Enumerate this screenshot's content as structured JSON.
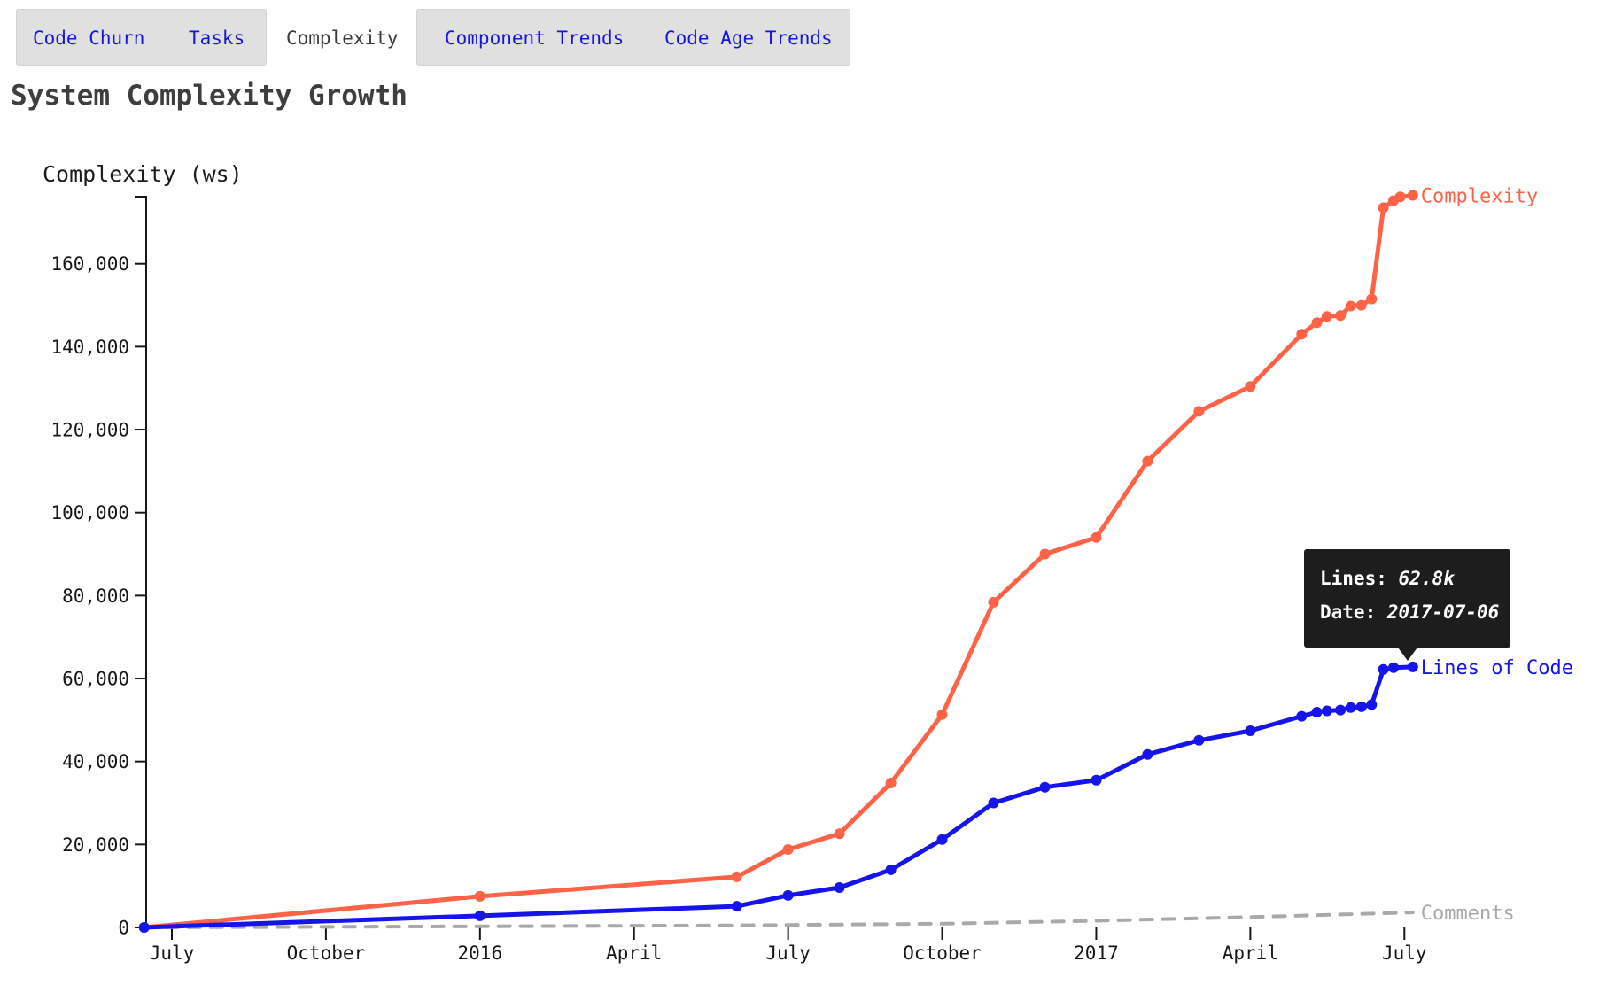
{
  "tabs": [
    {
      "label": "Code Churn",
      "active": false
    },
    {
      "label": "Tasks",
      "active": false
    },
    {
      "label": "Complexity",
      "active": true
    },
    {
      "label": "Component Trends",
      "active": false
    },
    {
      "label": "Code Age Trends",
      "active": false
    }
  ],
  "title": "System Complexity Growth",
  "tooltip": {
    "lines_label": "Lines:",
    "lines_value": "62.8k",
    "date_label": "Date:",
    "date_value": "2017-07-06"
  },
  "chart_data": {
    "type": "line",
    "title": "System Complexity Growth",
    "ylabel": "Complexity (ws)",
    "xlabel": "",
    "grid": false,
    "legend_position": "line-end-labels",
    "y_axis": {
      "min": 0,
      "max": 176500,
      "ticks": [
        {
          "value": 0,
          "label": "0"
        },
        {
          "value": 20000,
          "label": "20,000"
        },
        {
          "value": 40000,
          "label": "40,000"
        },
        {
          "value": 60000,
          "label": "60,000"
        },
        {
          "value": 80000,
          "label": "80,000"
        },
        {
          "value": 100000,
          "label": "100,000"
        },
        {
          "value": 120000,
          "label": "120,000"
        },
        {
          "value": 140000,
          "label": "140,000"
        },
        {
          "value": 160000,
          "label": "160,000"
        }
      ]
    },
    "x_axis": {
      "min_date": "2015-06-15",
      "max_date": "2017-07-06",
      "ticks": [
        {
          "date": "2015-07-01",
          "label": "July"
        },
        {
          "date": "2015-10-01",
          "label": "October"
        },
        {
          "date": "2016-01-01",
          "label": "2016"
        },
        {
          "date": "2016-04-01",
          "label": "April"
        },
        {
          "date": "2016-07-01",
          "label": "July"
        },
        {
          "date": "2016-10-01",
          "label": "October"
        },
        {
          "date": "2017-01-01",
          "label": "2017"
        },
        {
          "date": "2017-04-01",
          "label": "April"
        },
        {
          "date": "2017-07-01",
          "label": "July"
        }
      ]
    },
    "series": [
      {
        "name": "Comments",
        "color": "#a9a9a9",
        "style": "dashed",
        "markers": false,
        "points": [
          {
            "date": "2015-06-15",
            "value": 0
          },
          {
            "date": "2016-01-01",
            "value": 250
          },
          {
            "date": "2016-06-01",
            "value": 500
          },
          {
            "date": "2016-10-01",
            "value": 900
          },
          {
            "date": "2017-01-01",
            "value": 1600
          },
          {
            "date": "2017-04-01",
            "value": 2500
          },
          {
            "date": "2017-07-06",
            "value": 3600
          }
        ]
      },
      {
        "name": "Complexity",
        "color": "#ff6347",
        "style": "solid",
        "markers": true,
        "points": [
          {
            "date": "2015-06-15",
            "value": 0
          },
          {
            "date": "2016-01-01",
            "value": 7500
          },
          {
            "date": "2016-06-01",
            "value": 12200
          },
          {
            "date": "2016-07-01",
            "value": 18800
          },
          {
            "date": "2016-08-01",
            "value": 22600
          },
          {
            "date": "2016-09-01",
            "value": 34800
          },
          {
            "date": "2016-10-01",
            "value": 51300
          },
          {
            "date": "2016-11-01",
            "value": 78400
          },
          {
            "date": "2016-12-01",
            "value": 90000
          },
          {
            "date": "2017-01-01",
            "value": 94000
          },
          {
            "date": "2017-02-01",
            "value": 112400
          },
          {
            "date": "2017-03-01",
            "value": 124400
          },
          {
            "date": "2017-04-01",
            "value": 130400
          },
          {
            "date": "2017-05-01",
            "value": 143000
          },
          {
            "date": "2017-05-10",
            "value": 145800
          },
          {
            "date": "2017-05-16",
            "value": 147300
          },
          {
            "date": "2017-05-24",
            "value": 147500
          },
          {
            "date": "2017-05-30",
            "value": 149800
          },
          {
            "date": "2017-06-06",
            "value": 150000
          },
          {
            "date": "2017-06-12",
            "value": 151500
          },
          {
            "date": "2017-06-19",
            "value": 173500
          },
          {
            "date": "2017-06-25",
            "value": 175200
          },
          {
            "date": "2017-06-29",
            "value": 176100
          },
          {
            "date": "2017-07-06",
            "value": 176500
          }
        ]
      },
      {
        "name": "Lines of Code",
        "color": "#1414eb",
        "style": "solid",
        "markers": true,
        "points": [
          {
            "date": "2015-06-15",
            "value": 0
          },
          {
            "date": "2016-01-01",
            "value": 2800
          },
          {
            "date": "2016-06-01",
            "value": 5100
          },
          {
            "date": "2016-07-01",
            "value": 7700
          },
          {
            "date": "2016-08-01",
            "value": 9600
          },
          {
            "date": "2016-09-01",
            "value": 13900
          },
          {
            "date": "2016-10-01",
            "value": 21200
          },
          {
            "date": "2016-11-01",
            "value": 30000
          },
          {
            "date": "2016-12-01",
            "value": 33800
          },
          {
            "date": "2017-01-01",
            "value": 35500
          },
          {
            "date": "2017-02-01",
            "value": 41700
          },
          {
            "date": "2017-03-01",
            "value": 45100
          },
          {
            "date": "2017-04-01",
            "value": 47400
          },
          {
            "date": "2017-05-01",
            "value": 50900
          },
          {
            "date": "2017-05-10",
            "value": 51900
          },
          {
            "date": "2017-05-16",
            "value": 52200
          },
          {
            "date": "2017-05-24",
            "value": 52400
          },
          {
            "date": "2017-05-30",
            "value": 53000
          },
          {
            "date": "2017-06-06",
            "value": 53200
          },
          {
            "date": "2017-06-12",
            "value": 53700
          },
          {
            "date": "2017-06-19",
            "value": 62200
          },
          {
            "date": "2017-06-25",
            "value": 62600
          },
          {
            "date": "2017-07-06",
            "value": 62800
          }
        ]
      }
    ]
  }
}
